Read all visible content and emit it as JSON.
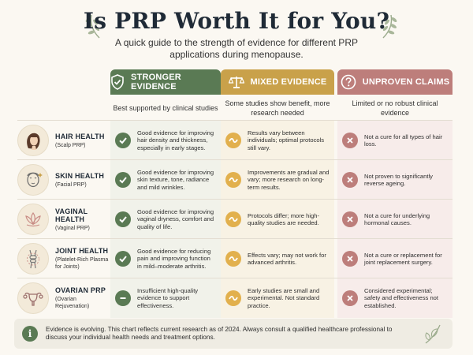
{
  "title": "Is PRP Worth It for You?",
  "subtitle": "A quick guide to the strength of evidence for different PRP applications during menopause.",
  "columns": [
    {
      "label": "STRONGER EVIDENCE",
      "icon": "shield-check-icon",
      "description": "Best supported by clinical studies",
      "color": "#5a7a54"
    },
    {
      "label": "MIXED EVIDENCE",
      "icon": "balance-scale-icon",
      "description": "Some studies show benefit, more research needed",
      "color": "#c9a14a"
    },
    {
      "label": "UNPROVEN CLAIMS",
      "icon": "question-mark-icon",
      "description": "Limited or no robust clinical evidence",
      "color": "#bd7e7b"
    }
  ],
  "rows": [
    {
      "name": "HAIR HEALTH",
      "sub": "(Scalp PRP)",
      "icon": "woman-hair-icon",
      "stronger": {
        "mark": "check",
        "text": "Good evidence for improving hair density and thickness, especially in early stages."
      },
      "mixed": {
        "mark": "tilde",
        "text": "Results vary between individuals; optimal protocols still vary."
      },
      "unproven": {
        "mark": "cross",
        "text": "Not a cure for all types of hair loss."
      }
    },
    {
      "name": "SKIN HEALTH",
      "sub": "(Facial PRP)",
      "icon": "face-sparkle-icon",
      "stronger": {
        "mark": "check",
        "text": "Good evidence for improving skin texture, tone, radiance and mild wrinkles."
      },
      "mixed": {
        "mark": "tilde",
        "text": "Improvements are gradual and vary; more research on long-term results."
      },
      "unproven": {
        "mark": "cross",
        "text": "Not proven to significantly reverse ageing."
      }
    },
    {
      "name": "VAGINAL HEALTH",
      "sub": "(Vaginal PRP)",
      "icon": "lotus-icon",
      "stronger": {
        "mark": "check",
        "text": "Good evidence for improving vaginal dryness, comfort and quality of life."
      },
      "mixed": {
        "mark": "tilde",
        "text": "Protocols differ; more high-quality studies are needed."
      },
      "unproven": {
        "mark": "cross",
        "text": "Not a cure for underlying hormonal causes."
      }
    },
    {
      "name": "JOINT HEALTH",
      "sub": "(Platelet-Rich Plasma for Joints)",
      "icon": "knee-joint-icon",
      "stronger": {
        "mark": "check",
        "text": "Good evidence for reducing pain and improving function in mild–moderate arthritis."
      },
      "mixed": {
        "mark": "tilde",
        "text": "Effects vary; may not work for advanced arthritis."
      },
      "unproven": {
        "mark": "cross",
        "text": "Not a cure or replacement for joint replacement surgery."
      }
    },
    {
      "name": "OVARIAN PRP",
      "sub": "(Ovarian Rejuvenation)",
      "icon": "uterus-icon",
      "stronger": {
        "mark": "minus",
        "text": "Insufficient high-quality evidence to support effectiveness."
      },
      "mixed": {
        "mark": "tilde",
        "text": "Early studies are small and experimental. Not standard practice."
      },
      "unproven": {
        "mark": "cross",
        "text": "Considered experimental; safety and effectiveness not established."
      }
    }
  ],
  "footer": {
    "icon": "info-icon",
    "info_glyph": "i",
    "text": "Evidence is evolving. This chart reflects current research as of 2024. Always consult a qualified healthcare professional to discuss your individual health needs and treatment options."
  }
}
